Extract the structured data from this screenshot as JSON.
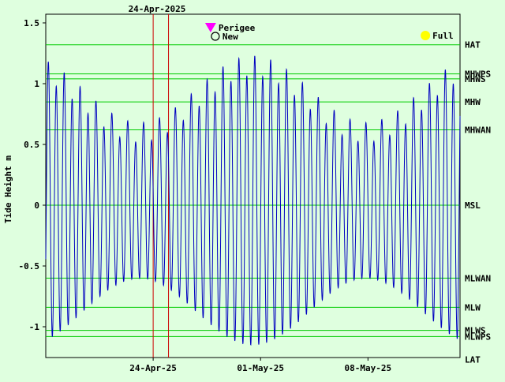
{
  "chart_data": {
    "type": "line",
    "top_date_label": "24-Apr-2025",
    "ylabel": "Tide Height m",
    "ylim": [
      -1.27,
      1.5
    ],
    "yticks": [
      {
        "value": 1.5,
        "label": "1.5"
      },
      {
        "value": 1.0,
        "label": "1"
      },
      {
        "value": 0.5,
        "label": "0.5"
      },
      {
        "value": 0.0,
        "label": "0"
      },
      {
        "value": -0.5,
        "label": "-0.5"
      },
      {
        "value": -1.0,
        "label": "-1"
      }
    ],
    "x_start": "2025-04-17",
    "x_end": "2025-05-14",
    "xticks": [
      {
        "date": "2025-04-24",
        "label": "24-Apr-25"
      },
      {
        "date": "2025-05-01",
        "label": "01-May-25"
      },
      {
        "date": "2025-05-08",
        "label": "08-May-25"
      }
    ],
    "datum_levels": [
      {
        "name": "HAT",
        "value": 1.32
      },
      {
        "name": "MHWPS",
        "value": 1.08
      },
      {
        "name": "MHWS",
        "value": 1.04
      },
      {
        "name": "MHW",
        "value": 0.85
      },
      {
        "name": "MHWAN",
        "value": 0.62
      },
      {
        "name": "MSL",
        "value": 0.0
      },
      {
        "name": "MLWAN",
        "value": -0.6
      },
      {
        "name": "MLW",
        "value": -0.84
      },
      {
        "name": "MLWS",
        "value": -1.03
      },
      {
        "name": "MLWPS",
        "value": -1.08
      },
      {
        "name": "LAT",
        "value": -1.27
      }
    ],
    "vertical_markers": [
      "2025-04-24T00:00",
      "2025-04-25T00:00"
    ],
    "events": [
      {
        "label": "Perigee",
        "date": "2025-04-28",
        "symbol": "down-triangle",
        "color": "#ff00ff"
      },
      {
        "label": "New",
        "date": "2025-04-28",
        "symbol": "open-circle",
        "color": "#000000"
      },
      {
        "label": "Full",
        "date": "2025-05-12",
        "symbol": "filled-circle",
        "color": "#ffff00"
      }
    ],
    "series": [
      {
        "tide_model": {
          "period_hours": 12.42,
          "spring_peak_date": "2025-04-30T12:00",
          "spring_range_m": 1.15,
          "neap_range_m": 0.6,
          "high_tide_ref": "2025-04-17T04:00",
          "diurnal_inequality": 0.08
        },
        "color": "#0000c0"
      }
    ],
    "grid": false,
    "colors": {
      "background": "#dfffdf",
      "level_lines": "#00cc00",
      "markers": "#cc0000",
      "series": "#0000c0"
    }
  }
}
